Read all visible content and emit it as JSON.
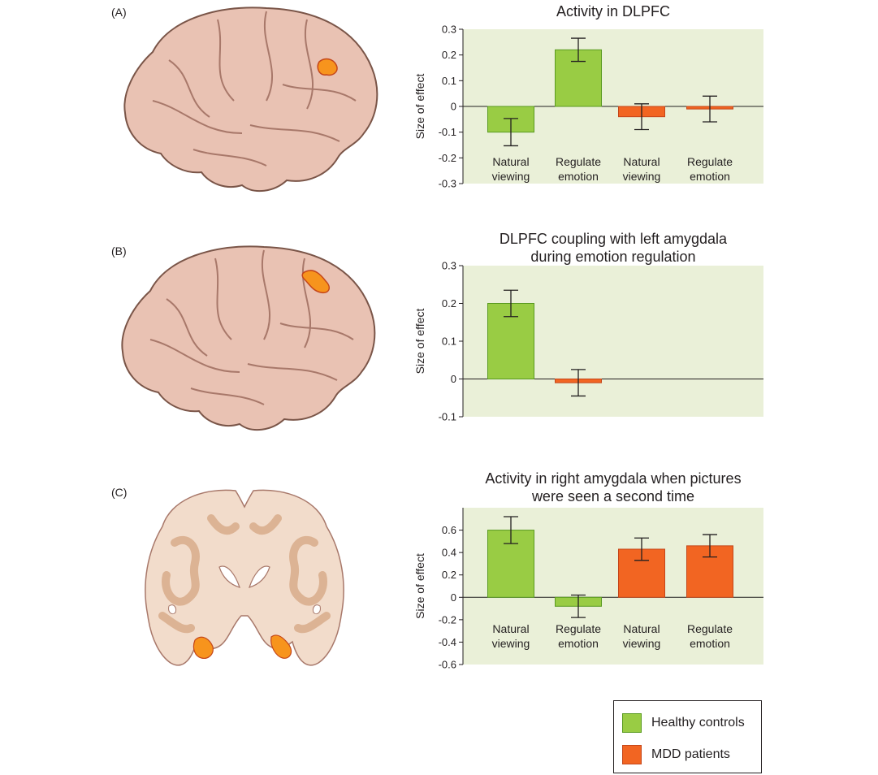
{
  "panels": [
    {
      "label": "(A)"
    },
    {
      "label": "(B)"
    },
    {
      "label": "(C)"
    }
  ],
  "colors": {
    "healthy_fill": "#99cc44",
    "healthy_stroke": "#5a9a20",
    "mdd_fill": "#f26522",
    "mdd_stroke": "#c4461a",
    "plot_bg": "#eaf0d8",
    "brain_skin": "#e9c2b3",
    "brain_outline": "#7a5548",
    "coronal_light": "#f2dccb",
    "coronal_dark": "#dcb394",
    "highlight": "#f7941d"
  },
  "chart_data": [
    {
      "type": "bar",
      "title": "Activity in DLPFC",
      "ylabel": "Size of effect",
      "ylim": [
        -0.3,
        0.3
      ],
      "yticks": [
        "-0.3",
        "-0.2",
        "-0.1",
        "0",
        "0.1",
        "0.2",
        "0.3"
      ],
      "ytick_values": [
        -0.3,
        -0.2,
        -0.1,
        0,
        0.1,
        0.2,
        0.3
      ],
      "categories": [
        {
          "line1": "Natural",
          "line2": "viewing"
        },
        {
          "line1": "Regulate",
          "line2": "emotion"
        },
        {
          "line1": "Natural",
          "line2": "viewing"
        },
        {
          "line1": "Regulate",
          "line2": "emotion"
        }
      ],
      "bars": [
        {
          "group": "healthy",
          "value": -0.1,
          "err": 0.053
        },
        {
          "group": "healthy",
          "value": 0.22,
          "err": 0.045
        },
        {
          "group": "mdd",
          "value": -0.04,
          "err": 0.05
        },
        {
          "group": "mdd",
          "value": -0.01,
          "err": 0.05
        }
      ],
      "category_labels_below": true
    },
    {
      "type": "bar",
      "title": "DLPFC coupling with left amygdala\nduring emotion regulation",
      "title_line1": "DLPFC coupling with left amygdala",
      "title_line2": "during emotion regulation",
      "ylabel": "Size of effect",
      "ylim": [
        -0.1,
        0.3
      ],
      "yticks": [
        "-0.1",
        "0",
        "0.1",
        "0.2",
        "0.3"
      ],
      "ytick_values": [
        -0.1,
        0,
        0.1,
        0.2,
        0.3
      ],
      "categories": [],
      "bars": [
        {
          "group": "healthy",
          "value": 0.2,
          "err": 0.035
        },
        {
          "group": "mdd",
          "value": -0.01,
          "err": 0.035
        }
      ],
      "category_labels_below": false
    },
    {
      "type": "bar",
      "title_line1": "Activity in right amygdala when pictures",
      "title_line2": "were seen a second time",
      "ylabel": "Size of effect",
      "ylim": [
        -0.6,
        0.8
      ],
      "yticks": [
        "-0.6",
        "-0.4",
        "-0.2",
        "0",
        "0.2",
        "0.4",
        "0.6"
      ],
      "ytick_values": [
        -0.6,
        -0.4,
        -0.2,
        0,
        0.2,
        0.4,
        0.6
      ],
      "categories": [
        {
          "line1": "Natural",
          "line2": "viewing"
        },
        {
          "line1": "Regulate",
          "line2": "emotion"
        },
        {
          "line1": "Natural",
          "line2": "viewing"
        },
        {
          "line1": "Regulate",
          "line2": "emotion"
        }
      ],
      "bars": [
        {
          "group": "healthy",
          "value": 0.6,
          "err": 0.12
        },
        {
          "group": "healthy",
          "value": -0.08,
          "err": 0.1
        },
        {
          "group": "mdd",
          "value": 0.43,
          "err": 0.1
        },
        {
          "group": "mdd",
          "value": 0.46,
          "err": 0.1
        }
      ],
      "category_labels_below": false
    }
  ],
  "legend": [
    {
      "key": "healthy",
      "label": "Healthy controls"
    },
    {
      "key": "mdd",
      "label": "MDD patients"
    }
  ]
}
